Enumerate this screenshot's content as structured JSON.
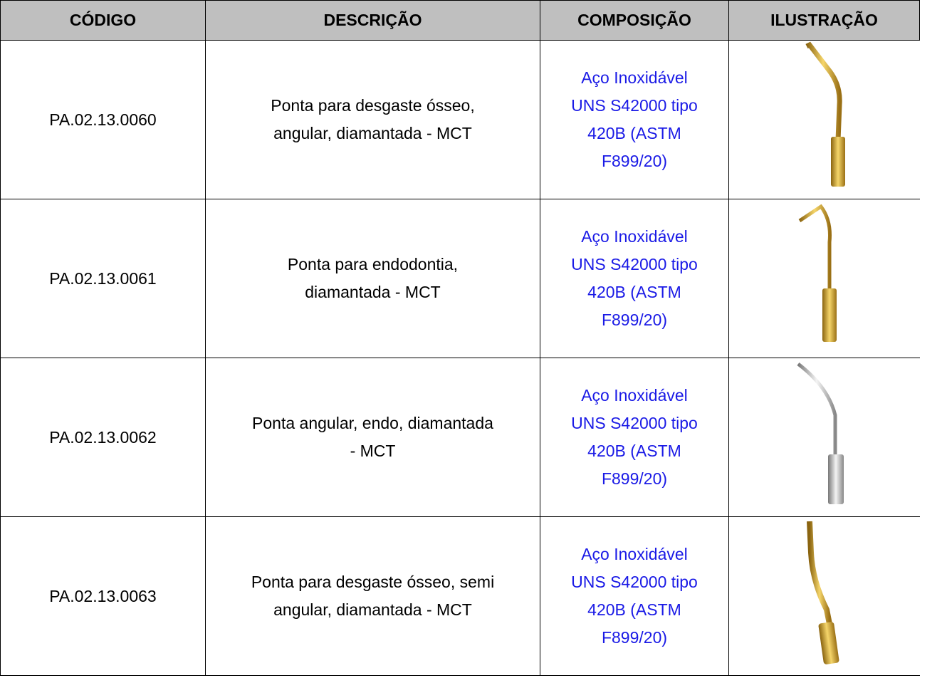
{
  "table": {
    "header": [
      "CÓDIGO",
      "DESCRIÇÃO",
      "COMPOSIÇÃO",
      "ILUSTRAÇÃO"
    ],
    "rows": [
      {
        "code": "PA.02.13.0060",
        "description": [
          "Ponta para desgaste ósseo,",
          "angular, diamantada - MCT"
        ],
        "composition": [
          "Aço Inoxidável",
          "UNS S42000 tipo",
          "420B (ASTM",
          "F899/20)"
        ]
      },
      {
        "code": "PA.02.13.0061",
        "description": [
          "Ponta para endodontia,",
          "diamantada - MCT"
        ],
        "composition": [
          "Aço Inoxidável",
          "UNS S42000 tipo",
          "420B (ASTM",
          "F899/20)"
        ]
      },
      {
        "code": "PA.02.13.0062",
        "description": [
          "Ponta angular, endo, diamantada",
          "- MCT"
        ],
        "composition": [
          "Aço Inoxidável",
          "UNS S42000 tipo",
          "420B (ASTM",
          "F899/20)"
        ]
      },
      {
        "code": "PA.02.13.0063",
        "description": [
          "Ponta para desgaste ósseo, semi",
          "angular, diamantada - MCT"
        ],
        "composition": [
          "Aço Inoxidável",
          "UNS S42000 tipo",
          "420B (ASTM",
          "F899/20)"
        ]
      }
    ]
  }
}
